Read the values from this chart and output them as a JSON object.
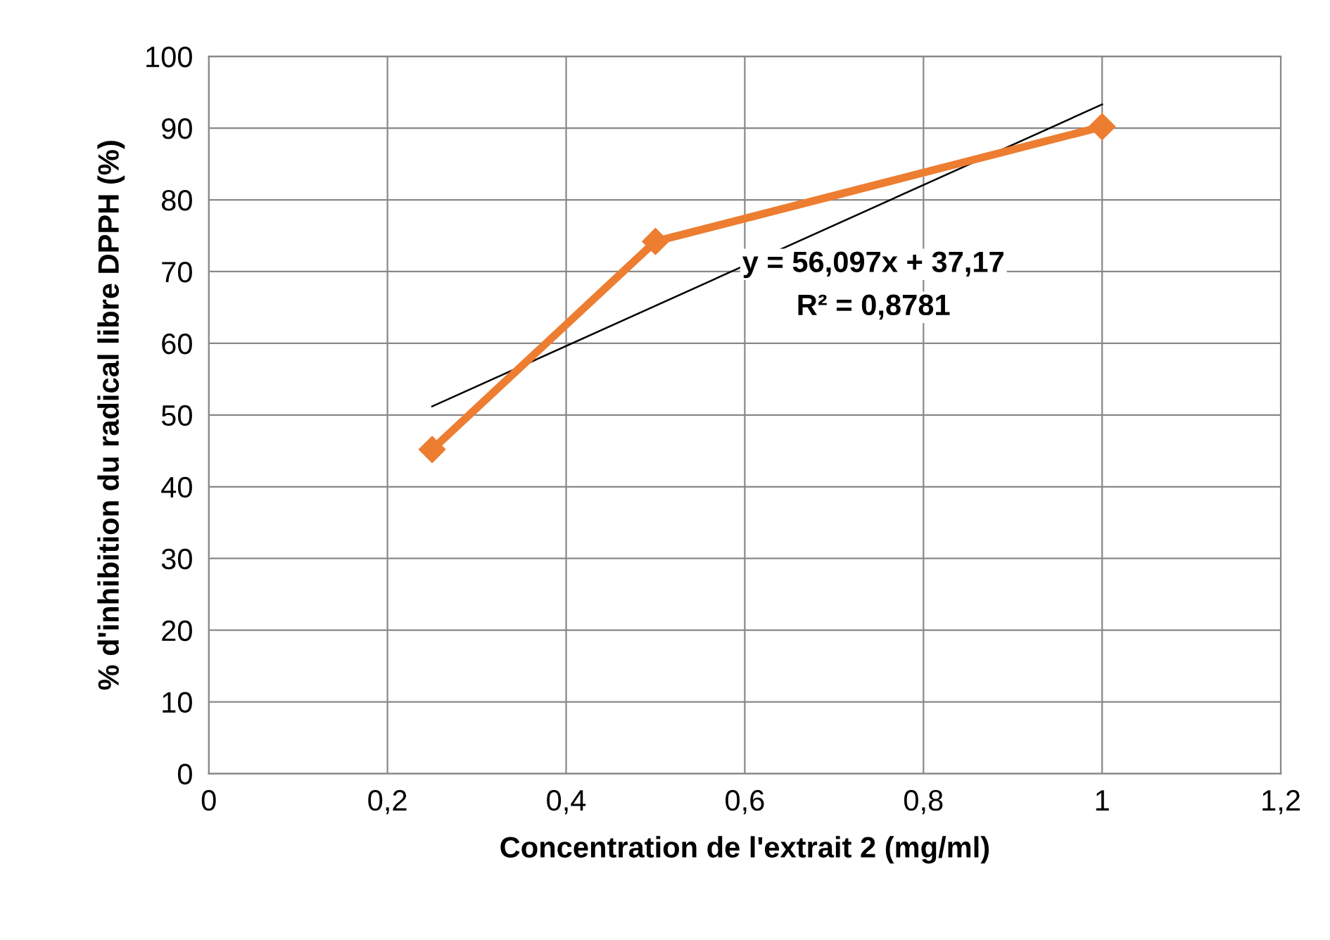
{
  "chart_data": {
    "type": "line",
    "xlabel": "Concentration de l'extrait 2 (mg/ml)",
    "ylabel": "% d'inhibition du radical libre DPPH (%)",
    "x": [
      0.25,
      0.5,
      1
    ],
    "series": [
      {
        "color": "#ed7d31",
        "values": [
          45.2,
          74.2,
          90.2
        ],
        "marker": "diamond"
      },
      {
        "type": "line",
        "x": [
          0.25,
          1
        ],
        "color": "#000000",
        "values": [
          51.2,
          93.3
        ],
        "marker": "none"
      }
    ],
    "xlim": [
      0,
      1.2
    ],
    "ylim": [
      0,
      100
    ],
    "xticks": [
      0,
      {
        "value": 0.2,
        "label": "0,2"
      },
      {
        "value": 0.4,
        "label": "0,4"
      },
      {
        "value": 0.6,
        "label": "0,6"
      },
      {
        "value": 0.8,
        "label": "0,8"
      },
      1,
      {
        "value": 1.2,
        "label": "1,2"
      }
    ],
    "yticks": [
      0,
      10,
      20,
      30,
      40,
      50,
      60,
      70,
      80,
      90,
      100
    ],
    "annotations": [
      "y = 56,097x + 37,17",
      "R² = 0,8781"
    ],
    "grid": true,
    "legend": false
  }
}
